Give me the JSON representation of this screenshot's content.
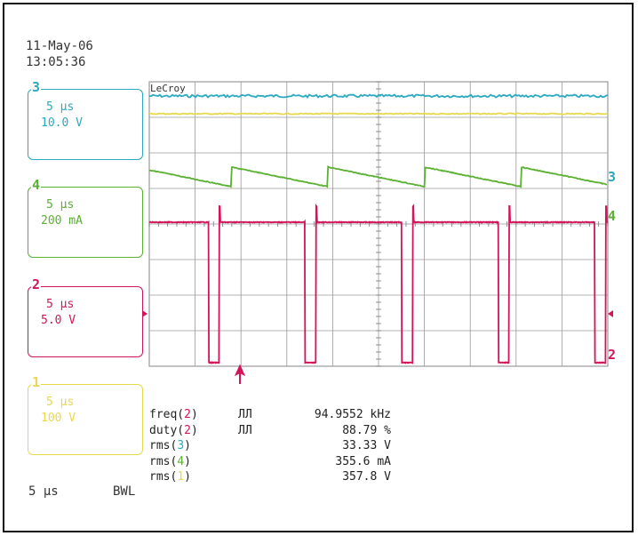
{
  "header": {
    "date": "11-May-06",
    "time": "13:05:36"
  },
  "brand": "LeCroy",
  "timebase": "5 µs",
  "bwl": "BWL",
  "colors": {
    "ch1": "#e8d84c",
    "ch2": "#d4145a",
    "ch3": "#2aa9c0",
    "ch4": "#5ab031",
    "grid": "#9a9a9a"
  },
  "channels": [
    {
      "id": "3",
      "num": "3",
      "time": "5 µs",
      "scale": "10.0 V"
    },
    {
      "id": "4",
      "num": "4",
      "time": "5 µs",
      "scale": "200 mA"
    },
    {
      "id": "2",
      "num": "2",
      "time": "5 µs",
      "scale": "5.0 V"
    },
    {
      "id": "1",
      "num": "1",
      "time": "5 µs",
      "scale": "100 V"
    }
  ],
  "right_markers": [
    "3",
    "4",
    "2"
  ],
  "measurements": [
    {
      "fn": "freq(",
      "ch": "2",
      "close": ")",
      "pulse": "ЛЛ",
      "value": "94.9552 kHz"
    },
    {
      "fn": "duty(",
      "ch": "2",
      "close": ")",
      "pulse": "ЛЛ",
      "value": "88.79 %"
    },
    {
      "fn": "rms(",
      "ch": "3",
      "close": ")",
      "pulse": "",
      "value": "33.33 V"
    },
    {
      "fn": "rms(",
      "ch": "4",
      "close": ")",
      "pulse": "",
      "value": "355.6 mA"
    },
    {
      "fn": "rms(",
      "ch": "1",
      "close": ")",
      "pulse": "",
      "value": "357.8 V"
    }
  ],
  "chart_data": {
    "type": "line",
    "grid": {
      "divisions_x": 10,
      "divisions_y": 8
    },
    "x": {
      "unit": "µs",
      "per_division": 5,
      "range": [
        0,
        50
      ]
    },
    "frequency_kHz": 94.9552,
    "duty_percent": 88.79,
    "series": [
      {
        "name": "3",
        "trace": "flat",
        "level_div": 7.6,
        "rms": "33.33 V"
      },
      {
        "name": "1",
        "trace": "flat",
        "level_div": 7.1,
        "rms": "357.8 V"
      },
      {
        "name": "4",
        "trace": "sawtooth",
        "high_div": 5.6,
        "low_div": 5.05,
        "rms": "355.6 mA"
      },
      {
        "name": "2",
        "trace": "pulse",
        "high_div": 4.05,
        "low_div": 0.1,
        "duty": 0.8879,
        "rms": ""
      }
    ]
  }
}
